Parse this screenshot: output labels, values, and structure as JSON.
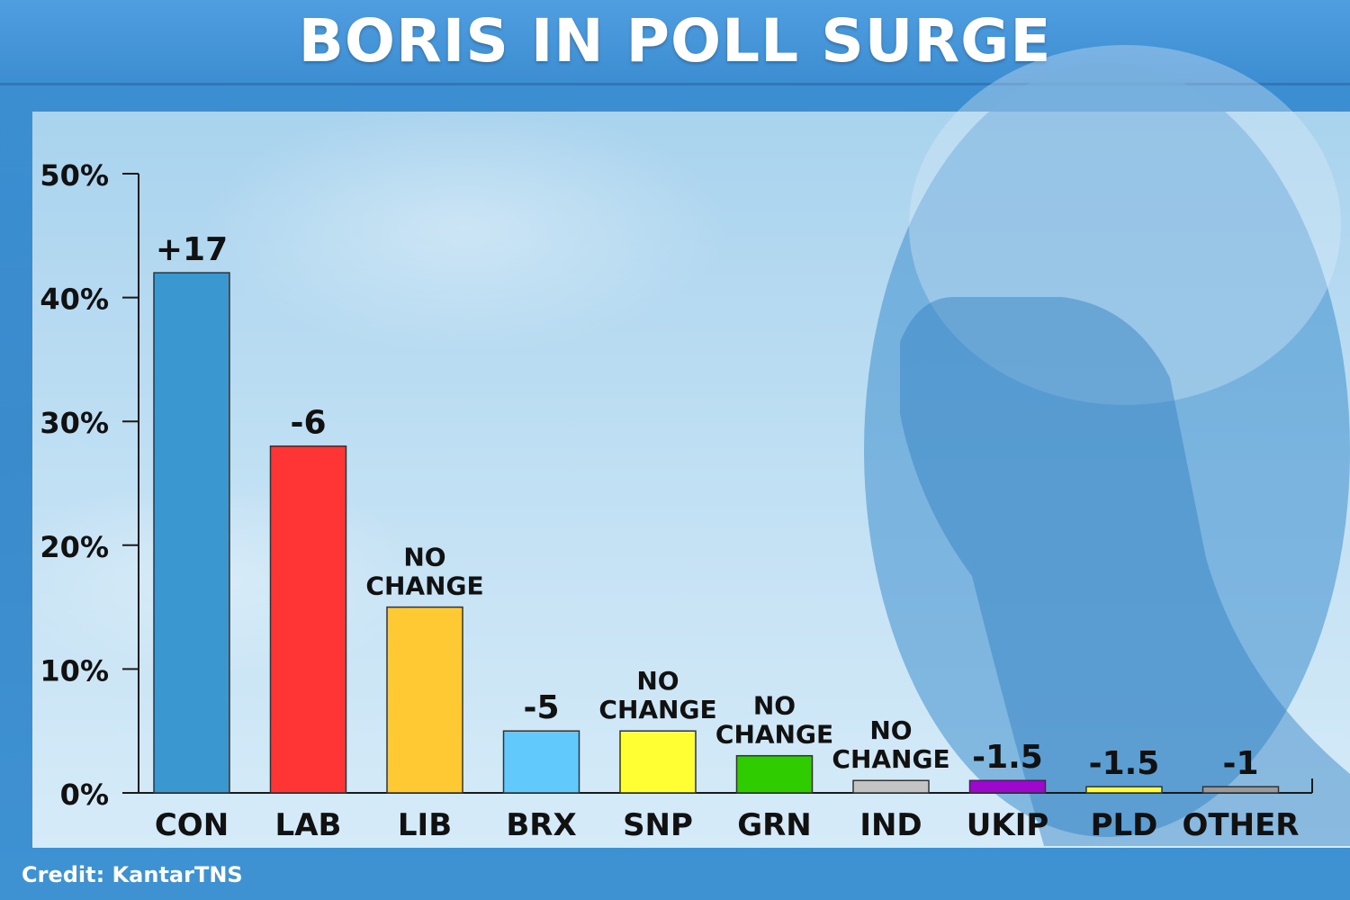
{
  "title": "BORIS IN POLL SURGE",
  "credit": "Credit: KantarTNS",
  "chart_data": {
    "type": "bar",
    "categories": [
      "CON",
      "LAB",
      "LIB",
      "BRX",
      "SNP",
      "GRN",
      "IND",
      "UKIP",
      "PLD",
      "OTHER"
    ],
    "values": [
      42,
      28,
      15,
      5,
      5,
      3,
      1,
      1,
      0.5,
      0.5
    ],
    "changes": [
      "+17",
      "-6",
      "NO CHANGE",
      "-5",
      "NO CHANGE",
      "NO CHANGE",
      "NO CHANGE",
      "-1.5",
      "-1.5",
      "-1"
    ],
    "colors": [
      "#3a97cf",
      "#ff3434",
      "#ffc933",
      "#61c9fb",
      "#ffff33",
      "#2fcc00",
      "#c4c4c4",
      "#9e08cc",
      "#ffff33",
      "#9a9a9a"
    ],
    "yticks": [
      "0%",
      "10%",
      "20%",
      "30%",
      "40%",
      "50%"
    ],
    "ylim": [
      0,
      50
    ],
    "grid": false
  }
}
